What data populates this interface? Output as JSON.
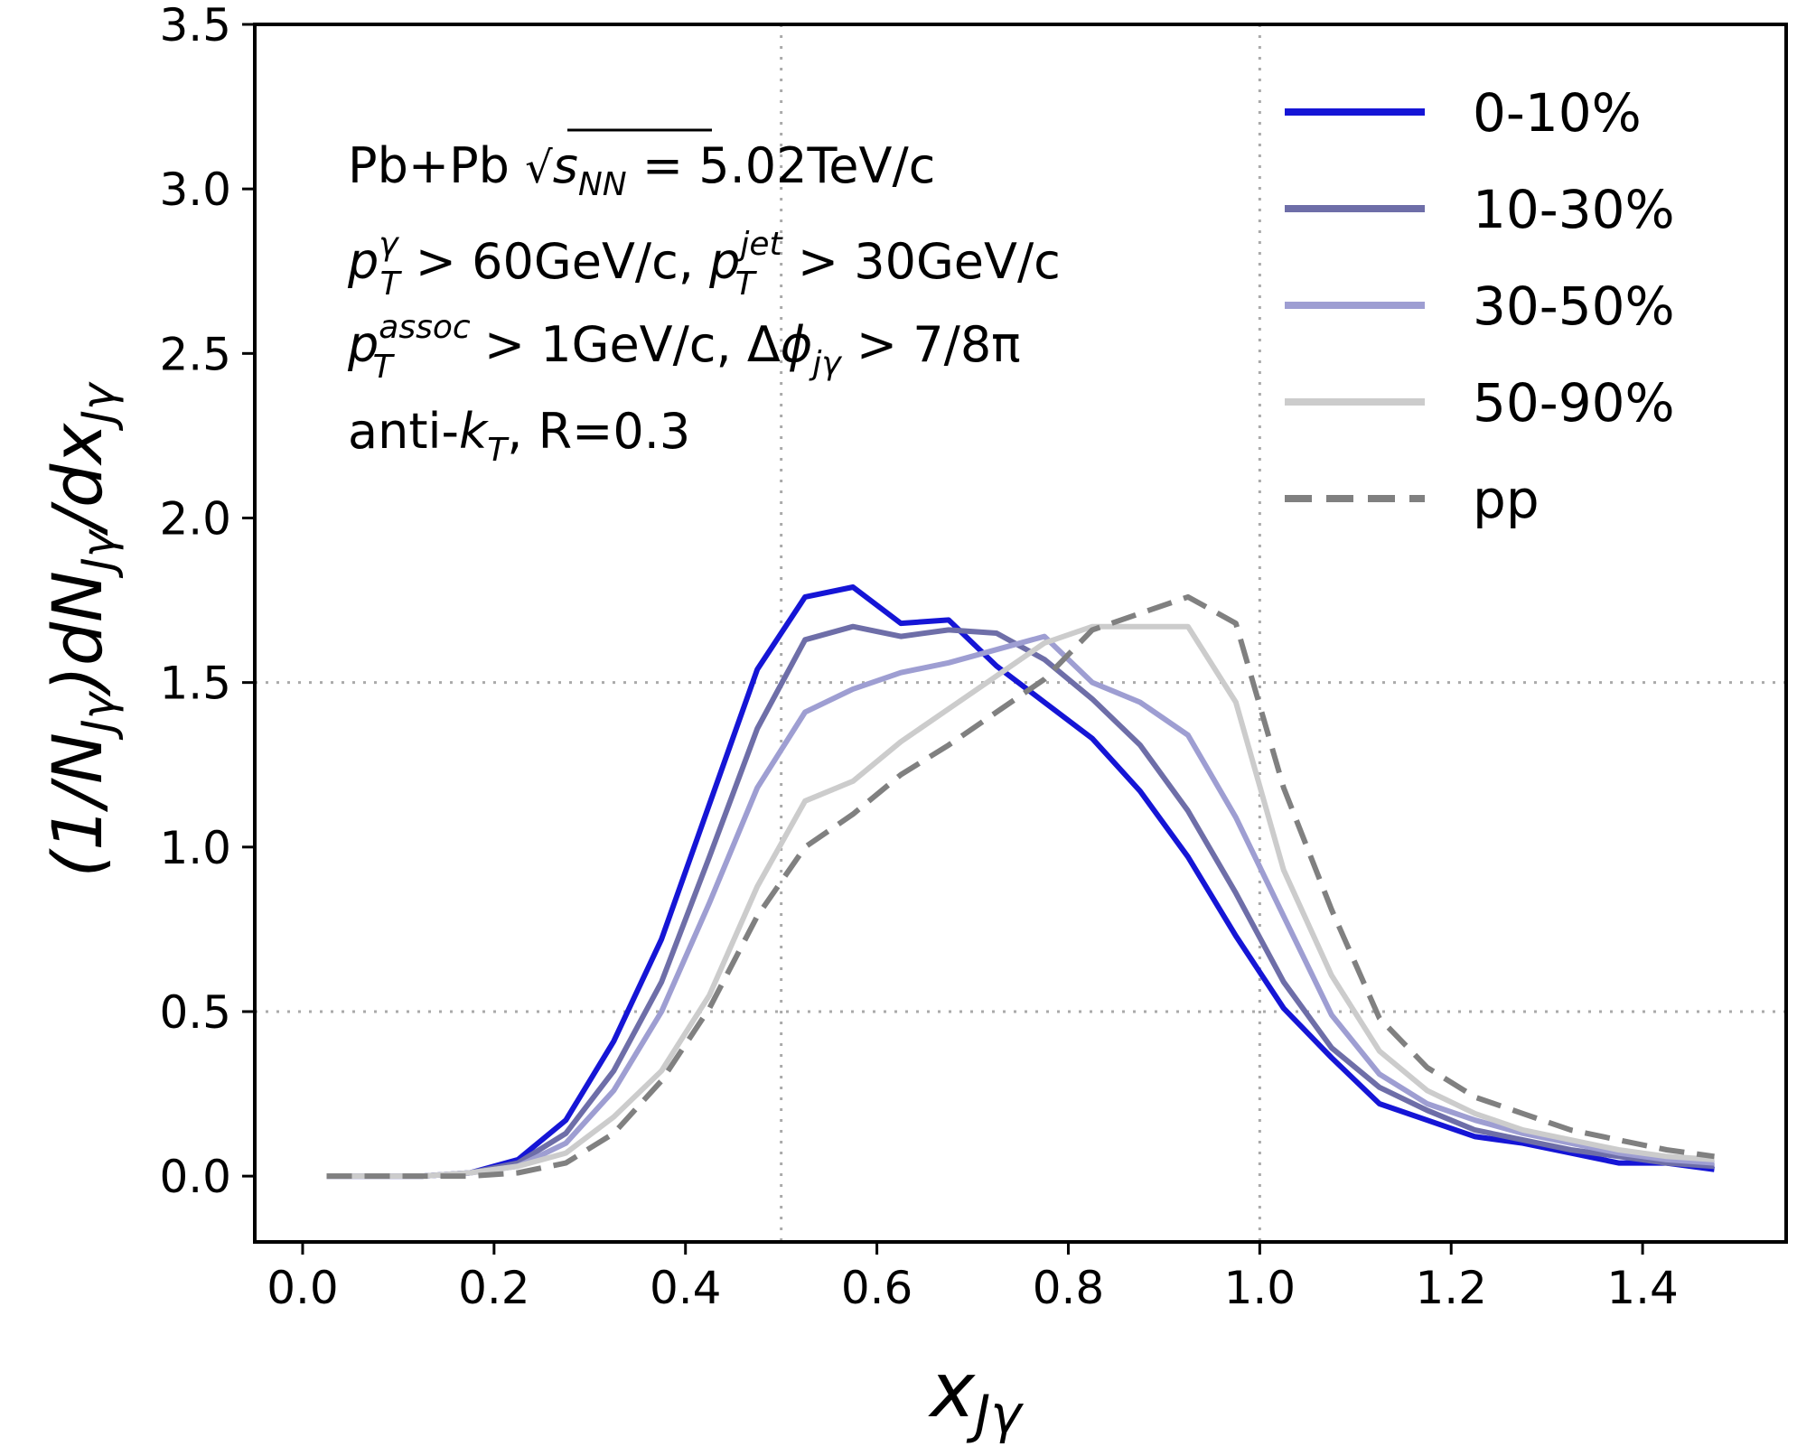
{
  "chart_data": {
    "type": "line",
    "title": "",
    "xlabel_main": "x",
    "xlabel_sub": "Jγ",
    "ylabel": "(1/N_Jγ)dN_Jγ/dx_Jγ",
    "xlim": [
      -0.05,
      1.55
    ],
    "ylim": [
      -0.2,
      3.5
    ],
    "xticks": [
      0.0,
      0.2,
      0.4,
      0.6,
      0.8,
      1.0,
      1.2,
      1.4
    ],
    "xtick_labels": [
      "0.0",
      "0.2",
      "0.4",
      "0.6",
      "0.8",
      "1.0",
      "1.2",
      "1.4"
    ],
    "yticks": [
      0.0,
      0.5,
      1.0,
      1.5,
      2.0,
      2.5,
      3.0,
      3.5
    ],
    "ytick_labels": [
      "0.0",
      "0.5",
      "1.0",
      "1.5",
      "2.0",
      "2.5",
      "3.0",
      "3.5"
    ],
    "reference_lines": {
      "x": [
        0.5,
        1.0
      ],
      "y": [
        0.5,
        1.5
      ],
      "style": "dotted",
      "color": "#aaaaaa"
    },
    "legend_placement": "top-right",
    "annotation": {
      "line1": {
        "prefix": "Pb+Pb ",
        "sqrt": "s",
        "sqrt_sub": "NN",
        "suffix": " = 5.02TeV/c"
      },
      "line2": {
        "p1": "p",
        "p1_sup": "γ",
        "p1_sub": "T",
        "t1": " > 60GeV/c, ",
        "p2": "p",
        "p2_sup": "jet",
        "p2_sub": "T",
        "t2": " > 30GeV/c"
      },
      "line3": {
        "p1": "p",
        "p1_sup": "assoc",
        "p1_sub": "T",
        "t1": " > 1GeV/c, Δ",
        "phi": "ϕ",
        "phi_sub": "jγ",
        "t2": " >  7/8π"
      },
      "line4": {
        "t1": "anti-",
        "k": "k",
        "k_sub": "T",
        "t2": ", R=0.3"
      }
    },
    "x": [
      0.025,
      0.075,
      0.125,
      0.175,
      0.225,
      0.275,
      0.325,
      0.375,
      0.425,
      0.475,
      0.525,
      0.575,
      0.625,
      0.675,
      0.725,
      0.775,
      0.825,
      0.875,
      0.925,
      0.975,
      1.025,
      1.075,
      1.125,
      1.175,
      1.225,
      1.275,
      1.325,
      1.375,
      1.425,
      1.475
    ],
    "series": [
      {
        "name": "0-10%",
        "color": "#1515d6",
        "dash": "none",
        "values": [
          0.0,
          0.0,
          0.0,
          0.01,
          0.05,
          0.17,
          0.41,
          0.72,
          1.13,
          1.54,
          1.76,
          1.79,
          1.68,
          1.69,
          1.55,
          1.44,
          1.33,
          1.17,
          0.97,
          0.73,
          0.51,
          0.36,
          0.22,
          0.17,
          0.12,
          0.1,
          0.07,
          0.04,
          0.04,
          0.02
        ]
      },
      {
        "name": "10-30%",
        "color": "#6e6ea8",
        "dash": "none",
        "values": [
          0.0,
          0.0,
          0.0,
          0.01,
          0.04,
          0.13,
          0.32,
          0.59,
          0.97,
          1.36,
          1.63,
          1.67,
          1.64,
          1.66,
          1.65,
          1.57,
          1.45,
          1.31,
          1.11,
          0.86,
          0.59,
          0.39,
          0.27,
          0.2,
          0.14,
          0.11,
          0.08,
          0.06,
          0.04,
          0.03
        ]
      },
      {
        "name": "30-50%",
        "color": "#9e9ed2",
        "dash": "none",
        "values": [
          0.0,
          0.0,
          0.0,
          0.01,
          0.03,
          0.1,
          0.26,
          0.5,
          0.83,
          1.18,
          1.41,
          1.48,
          1.53,
          1.56,
          1.6,
          1.64,
          1.5,
          1.44,
          1.34,
          1.09,
          0.79,
          0.49,
          0.31,
          0.22,
          0.17,
          0.13,
          0.1,
          0.07,
          0.05,
          0.04
        ]
      },
      {
        "name": "50-90%",
        "color": "#cccccc",
        "dash": "none",
        "values": [
          0.0,
          0.0,
          0.0,
          0.01,
          0.03,
          0.07,
          0.18,
          0.32,
          0.55,
          0.88,
          1.14,
          1.2,
          1.32,
          1.42,
          1.52,
          1.62,
          1.67,
          1.67,
          1.67,
          1.44,
          0.93,
          0.61,
          0.38,
          0.26,
          0.19,
          0.14,
          0.11,
          0.08,
          0.06,
          0.05
        ]
      },
      {
        "name": "pp",
        "color": "#808080",
        "dash": "28,14",
        "values": [
          0.0,
          0.0,
          0.0,
          0.0,
          0.01,
          0.04,
          0.13,
          0.29,
          0.51,
          0.79,
          1.0,
          1.1,
          1.22,
          1.31,
          1.41,
          1.51,
          1.66,
          1.71,
          1.76,
          1.68,
          1.18,
          0.81,
          0.48,
          0.33,
          0.24,
          0.19,
          0.14,
          0.11,
          0.08,
          0.06
        ]
      }
    ]
  }
}
